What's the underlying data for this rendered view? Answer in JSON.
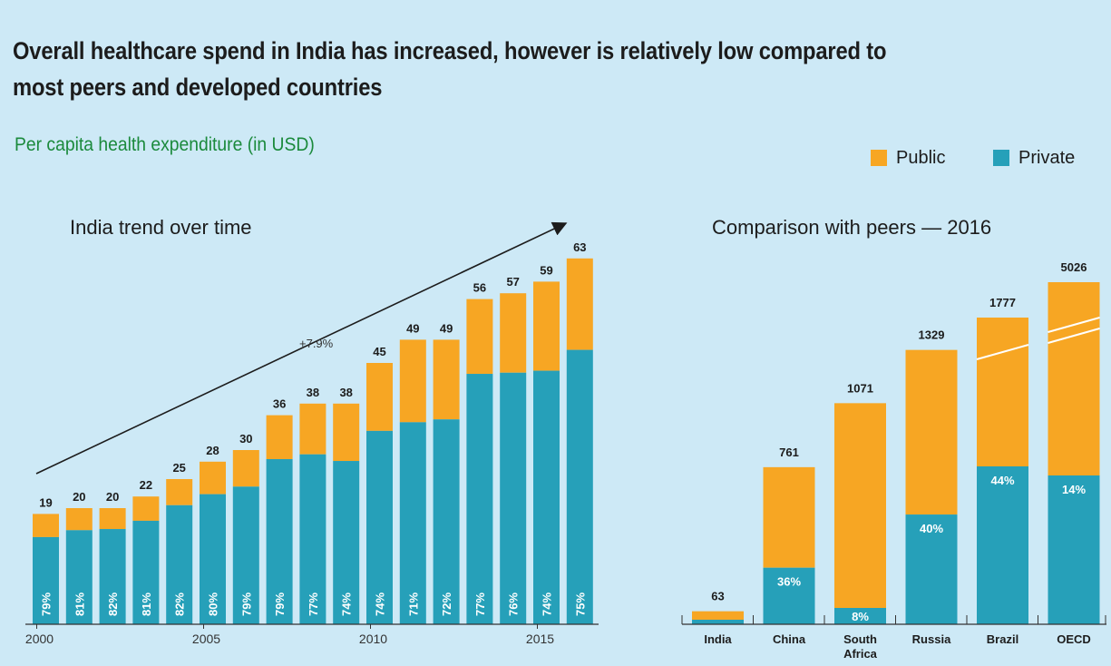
{
  "title": "Overall healthcare spend in India has increased, however is relatively low compared to most peers and developed countries",
  "subtitle": "Per capita health expenditure (in USD)",
  "legend": {
    "public": "Public",
    "private": "Private"
  },
  "colors": {
    "public": "#f7a623",
    "private": "#26a0b9",
    "background": "#cde9f6"
  },
  "chart_data": [
    {
      "type": "bar",
      "stacked": true,
      "title": "India trend over time",
      "x": [
        2000,
        2001,
        2002,
        2003,
        2004,
        2005,
        2006,
        2007,
        2008,
        2009,
        2010,
        2011,
        2012,
        2013,
        2014,
        2015,
        2016
      ],
      "x_tick_labels": [
        "2000",
        "2005",
        "2010",
        "2015"
      ],
      "totals": [
        19,
        20,
        20,
        22,
        25,
        28,
        30,
        36,
        38,
        38,
        45,
        49,
        49,
        56,
        57,
        59,
        63
      ],
      "private_share_pct": [
        79,
        81,
        82,
        81,
        82,
        80,
        79,
        79,
        77,
        74,
        74,
        71,
        72,
        77,
        76,
        74,
        75
      ],
      "series": [
        {
          "name": "Private",
          "role": "bottom"
        },
        {
          "name": "Public",
          "role": "top"
        }
      ],
      "annotation": "+7.9%",
      "ylim": [
        0,
        70
      ]
    },
    {
      "type": "bar",
      "stacked": true,
      "title": "Comparison with peers — 2016",
      "categories": [
        "India",
        "China",
        "South Africa",
        "Russia",
        "Brazil",
        "OECD"
      ],
      "category_lines": [
        [
          "India"
        ],
        [
          "China"
        ],
        [
          "South",
          "Africa"
        ],
        [
          "Russia"
        ],
        [
          "Brazil"
        ],
        [
          "OECD"
        ]
      ],
      "totals": [
        63,
        761,
        1071,
        1329,
        1777,
        5026
      ],
      "private_share_pct": [
        75,
        36,
        8,
        40,
        44,
        14
      ],
      "share_labels": [
        "",
        "36%",
        "8%",
        "40%",
        "44%",
        "14%"
      ],
      "axis_break": [
        "Brazil",
        "OECD"
      ]
    }
  ]
}
